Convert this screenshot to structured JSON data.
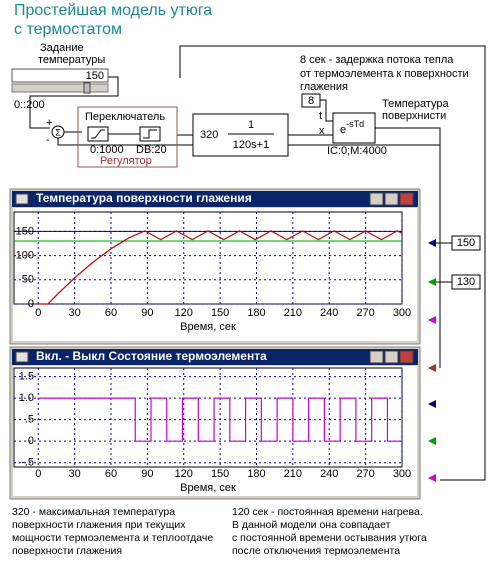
{
  "title": [
    "Простейшая модель утюга",
    "с термостатом"
  ],
  "diagram": {
    "setpoint_label": [
      "Задание",
      "температуры"
    ],
    "setpoint_value": 150,
    "slider_range": "0::200",
    "sum_symbol": "Σ",
    "sum_signs": [
      "+",
      "-"
    ],
    "switch_label": "Переключатель",
    "switch_range": "0:1000",
    "deadband": "DB:20",
    "regulator_label": "Регулятор",
    "gain": 320,
    "numerator": 1,
    "denominator": "120s+1",
    "delay_note": [
      "8 сек - задержка потока тепла",
      "от термоэлемента к поверхности",
      "глажения"
    ],
    "delay_time": 8,
    "delay_ports": [
      "t",
      "x"
    ],
    "delay_base": "e",
    "delay_exponent": "-sTd",
    "delay_params": "IC:0;M:4000",
    "output_label": [
      "Температура",
      "поверхнисти"
    ]
  },
  "chart_data": [
    {
      "type": "line",
      "title": "Температура поверхности глажения",
      "xlabel": "Время, сек",
      "xlim": [
        -20,
        300
      ],
      "ylim": [
        0,
        190
      ],
      "xticks": [
        0,
        30,
        60,
        90,
        120,
        150,
        180,
        210,
        240,
        270,
        300
      ],
      "yticks": [
        0,
        50,
        100,
        150
      ],
      "grid": true,
      "series": [
        {
          "color": "#c00000",
          "x": [
            0,
            8,
            15,
            30,
            45,
            60,
            75,
            88,
            101,
            114,
            127,
            140,
            153,
            166,
            179,
            192,
            205,
            218,
            231,
            244,
            257,
            270,
            283,
            296,
            300
          ],
          "values": [
            0,
            0,
            18,
            54,
            86,
            114,
            137,
            151,
            133,
            151,
            133,
            151,
            133,
            151,
            133,
            151,
            133,
            151,
            133,
            151,
            133,
            151,
            133,
            151,
            146
          ]
        }
      ],
      "hlines": [
        {
          "value": 150,
          "color": "#000080"
        },
        {
          "value": 130,
          "color": "#00a000"
        }
      ]
    },
    {
      "type": "line",
      "title": "Вкл. - Выкл Состояние термоэлемента",
      "xlabel": "Время, сек",
      "xlim": [
        -20,
        300
      ],
      "ylim": [
        -0.6,
        1.7
      ],
      "xticks": [
        0,
        30,
        60,
        90,
        120,
        150,
        180,
        210,
        240,
        270,
        300
      ],
      "yticks": [
        {
          "value": -0.5,
          "label": "-.5"
        },
        0,
        {
          "value": 0.5,
          "label": ".5"
        },
        {
          "value": 1,
          "label": "1.0"
        },
        1.5
      ],
      "grid": true,
      "series": [
        {
          "color": "#d000d0",
          "x": [
            0,
            80,
            80,
            93,
            93,
            106,
            106,
            119,
            119,
            132,
            132,
            145,
            145,
            158,
            158,
            171,
            171,
            184,
            184,
            197,
            197,
            210,
            210,
            223,
            223,
            236,
            236,
            249,
            249,
            262,
            262,
            275,
            275,
            288,
            288,
            300
          ],
          "values": [
            1,
            1,
            0,
            0,
            1,
            1,
            0,
            0,
            1,
            1,
            0,
            0,
            1,
            1,
            0,
            0,
            1,
            1,
            0,
            0,
            1,
            1,
            0,
            0,
            1,
            1,
            0,
            0,
            1,
            1,
            0,
            0,
            1,
            1,
            0,
            0
          ]
        }
      ]
    }
  ],
  "notes": {
    "left": [
      "320 - максимальная температура",
      "поверхности глажения при текущих",
      "мощности термоэлемента и теплоотдаче",
      "поверхности глажения"
    ],
    "right": [
      "120 сек - постоянная времени нагрева.",
      "В данной модели она совпадает",
      "с постоянной времени остывания утюга",
      "после отключения термоэлемента"
    ]
  }
}
